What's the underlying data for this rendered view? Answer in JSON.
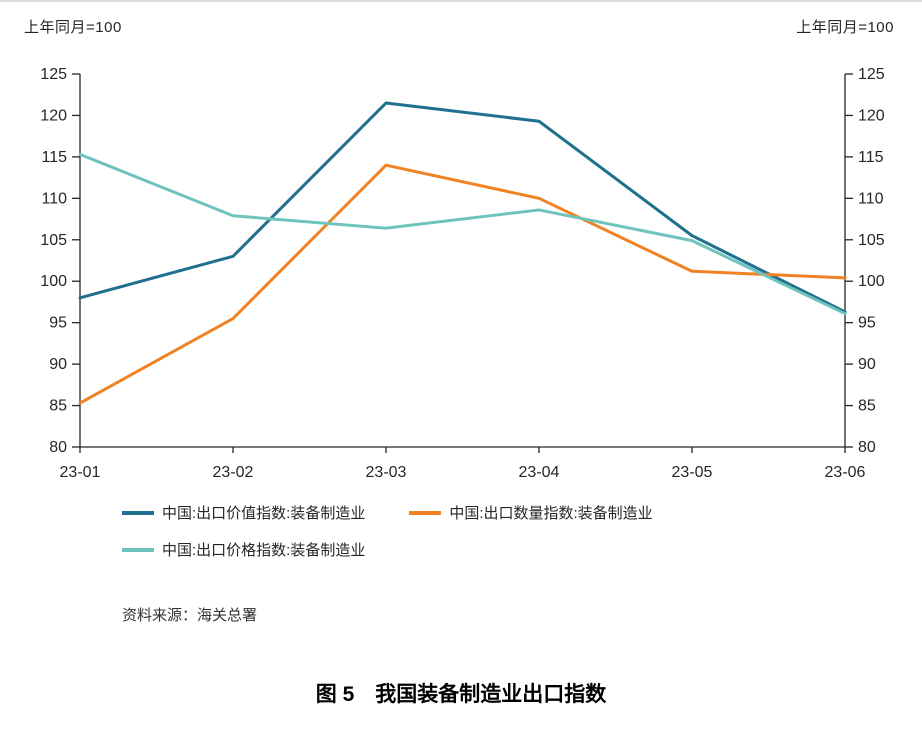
{
  "header": {
    "axis_unit_left": "上年同月=100",
    "axis_unit_right": "上年同月=100"
  },
  "chart_data": {
    "type": "line",
    "x": [
      "23-01",
      "23-02",
      "23-03",
      "23-04",
      "23-05",
      "23-06"
    ],
    "series": [
      {
        "name": "中国:出口价值指数:装备制造业",
        "color": "#1f6f8f",
        "values": [
          98,
          103,
          121.5,
          119.3,
          105.5,
          96.3
        ]
      },
      {
        "name": "中国:出口数量指数:装备制造业",
        "color": "#f08223",
        "values": [
          85.3,
          95.5,
          114,
          110,
          101.2,
          100.4
        ]
      },
      {
        "name": "中国:出口价格指数:装备制造业",
        "color": "#6fc3bd",
        "values": [
          115.3,
          107.9,
          106.4,
          108.6,
          104.9,
          96.1
        ]
      }
    ],
    "ylim": [
      80,
      125
    ],
    "yticks": [
      80,
      85,
      90,
      95,
      100,
      105,
      110,
      115,
      120,
      125
    ],
    "grid": false,
    "legend_position": "bottom"
  },
  "footer": {
    "source": "资料来源：海关总署",
    "title": "图 5　我国装备制造业出口指数"
  }
}
